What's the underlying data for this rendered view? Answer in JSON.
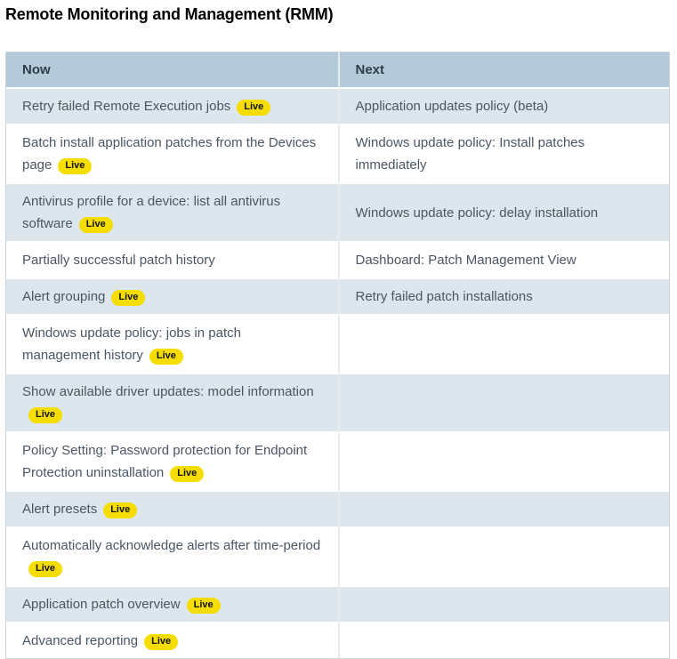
{
  "page": {
    "title": "Remote Monitoring and Management (RMM)"
  },
  "table": {
    "columns": [
      {
        "label": "Now"
      },
      {
        "label": "Next"
      }
    ],
    "badge_label": "Live",
    "rows": [
      {
        "now": {
          "text": "Retry failed Remote Execution jobs",
          "live": true
        },
        "next": {
          "text": "Application updates policy (beta)",
          "live": false
        }
      },
      {
        "now": {
          "text": "Batch install application patches from the Devices page",
          "live": true
        },
        "next": {
          "text": "Windows update policy: Install patches immediately",
          "live": false
        }
      },
      {
        "now": {
          "text": "Antivirus profile for a device: list all antivirus software",
          "live": true
        },
        "next": {
          "text": "Windows update policy: delay installation",
          "live": false
        }
      },
      {
        "now": {
          "text": "Partially successful patch history",
          "live": false
        },
        "next": {
          "text": "Dashboard: Patch Management View",
          "live": false
        }
      },
      {
        "now": {
          "text": "Alert grouping",
          "live": true
        },
        "next": {
          "text": "Retry failed patch installations",
          "live": false
        }
      },
      {
        "now": {
          "text": "Windows update policy: jobs in patch management history",
          "live": true
        },
        "next": {
          "text": "",
          "live": false
        }
      },
      {
        "now": {
          "text": "Show available driver updates: model information",
          "live": true
        },
        "next": {
          "text": "",
          "live": false
        }
      },
      {
        "now": {
          "text": "Policy Setting: Password protection for Endpoint Protection uninstallation",
          "live": true
        },
        "next": {
          "text": "",
          "live": false
        }
      },
      {
        "now": {
          "text": "Alert presets",
          "live": true
        },
        "next": {
          "text": "",
          "live": false
        }
      },
      {
        "now": {
          "text": "Automatically acknowledge alerts after time-period",
          "live": true
        },
        "next": {
          "text": "",
          "live": false
        }
      },
      {
        "now": {
          "text": "Application patch overview",
          "live": true
        },
        "next": {
          "text": "",
          "live": false
        }
      },
      {
        "now": {
          "text": "Advanced reporting",
          "live": true
        },
        "next": {
          "text": "",
          "live": false
        }
      }
    ]
  },
  "colors": {
    "header_bg": "#b5cad8",
    "row_alt_bg": "#dde6ec",
    "row_bg": "#ffffff",
    "badge_bg": "#f5dd00",
    "badge_text": "#111111",
    "body_text": "#4a5663",
    "header_text": "#2f3d4a",
    "title_text": "#000000"
  }
}
